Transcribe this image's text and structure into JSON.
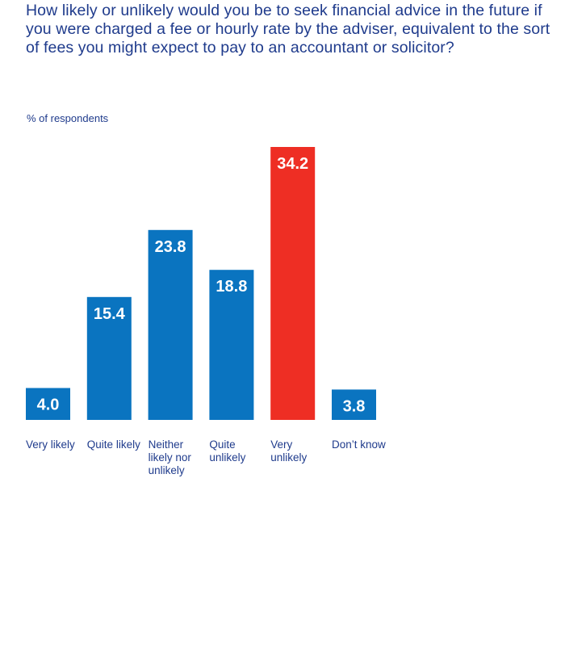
{
  "title": "How likely or unlikely would you be to seek financial advice in the future if you were charged a fee or hourly rate by the adviser, equivalent to the sort of fees you might expect to pay to an accountant or solicitor?",
  "colors": {
    "text": "#1f3b8c",
    "bar": "#0a74c0",
    "highlight": "#ee2e24",
    "value_label": "#ffffff"
  },
  "chart_data": {
    "type": "bar",
    "ylabel": "% of respondents",
    "categories": [
      "Very likely",
      "Quite likely",
      "Neither likely nor unlikely",
      "Quite unlikely",
      "Very unlikely",
      "Don’t know"
    ],
    "category_lines": [
      [
        "Very likely"
      ],
      [
        "Quite likely"
      ],
      [
        "Neither",
        "likely nor",
        "unlikely"
      ],
      [
        "Quite",
        "unlikely"
      ],
      [
        "Very",
        "unlikely"
      ],
      [
        "Don’t know"
      ]
    ],
    "values": [
      4.0,
      15.4,
      23.8,
      18.8,
      34.2,
      3.8
    ],
    "value_labels": [
      "4.0",
      "15.4",
      "23.8",
      "18.8",
      "34.2",
      "3.8"
    ],
    "highlight_index": 4,
    "ylim": [
      0,
      34.2
    ],
    "grid": false,
    "legend": "none"
  }
}
